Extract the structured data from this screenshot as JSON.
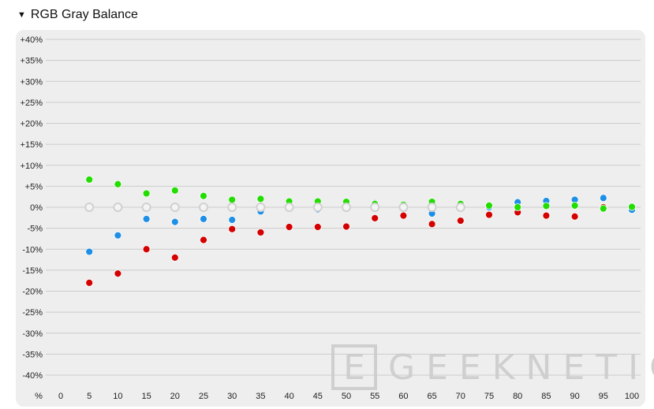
{
  "header": {
    "toggle_icon": "triangle-down-icon",
    "title": "RGB Gray Balance"
  },
  "watermark": {
    "text": "GEEKNETIC",
    "logo_letter": "E"
  },
  "chart_data": {
    "type": "scatter",
    "title": "RGB Gray Balance",
    "xlabel": "%",
    "ylabel": "",
    "x": [
      0,
      5,
      10,
      15,
      20,
      25,
      30,
      35,
      40,
      45,
      50,
      55,
      60,
      65,
      70,
      75,
      80,
      85,
      90,
      95,
      100
    ],
    "x_ticks": [
      "0",
      "5",
      "10",
      "15",
      "20",
      "25",
      "30",
      "35",
      "40",
      "45",
      "50",
      "55",
      "60",
      "65",
      "70",
      "75",
      "80",
      "85",
      "90",
      "95",
      "100"
    ],
    "ylim": [
      -40,
      40
    ],
    "y_ticks": [
      40,
      35,
      30,
      25,
      20,
      15,
      10,
      5,
      0,
      -5,
      -10,
      -15,
      -20,
      -25,
      -30,
      -35,
      -40
    ],
    "y_tick_labels": [
      "+40%",
      "+35%",
      "+30%",
      "+25%",
      "+20%",
      "+15%",
      "+10%",
      "+5%",
      "0%",
      "-5%",
      "-10%",
      "-15%",
      "-20%",
      "-25%",
      "-30%",
      "-35%",
      "-40%"
    ],
    "grid": true,
    "series": [
      {
        "color": "#d40000",
        "points": [
          [
            5,
            -18
          ],
          [
            10,
            -15.8
          ],
          [
            15,
            -10
          ],
          [
            20,
            -12
          ],
          [
            25,
            -7.8
          ],
          [
            30,
            -5.2
          ],
          [
            35,
            -6
          ],
          [
            40,
            -4.7
          ],
          [
            45,
            -4.7
          ],
          [
            50,
            -4.6
          ],
          [
            55,
            -2.6
          ],
          [
            60,
            -2
          ],
          [
            65,
            -4
          ],
          [
            70,
            -3.2
          ],
          [
            75,
            -1.8
          ],
          [
            80,
            -1.2
          ],
          [
            85,
            -2
          ],
          [
            90,
            -2.2
          ],
          [
            95,
            0
          ],
          [
            100,
            0
          ]
        ]
      },
      {
        "color": "#1e8fe6",
        "points": [
          [
            5,
            -10.6
          ],
          [
            10,
            -6.7
          ],
          [
            15,
            -2.8
          ],
          [
            20,
            -3.5
          ],
          [
            25,
            -2.8
          ],
          [
            30,
            -3
          ],
          [
            35,
            -1
          ],
          [
            40,
            0.8
          ],
          [
            45,
            -0.5
          ],
          [
            50,
            0.8
          ],
          [
            55,
            1
          ],
          [
            60,
            -0.3
          ],
          [
            65,
            -1.5
          ],
          [
            70,
            0.8
          ],
          [
            75,
            0
          ],
          [
            80,
            1.2
          ],
          [
            85,
            1.5
          ],
          [
            90,
            1.8
          ],
          [
            95,
            2.2
          ],
          [
            100,
            -0.6
          ]
        ]
      },
      {
        "color": "#22dd00",
        "points": [
          [
            5,
            6.6
          ],
          [
            10,
            5.5
          ],
          [
            15,
            3.3
          ],
          [
            20,
            4
          ],
          [
            25,
            2.7
          ],
          [
            30,
            1.8
          ],
          [
            35,
            2
          ],
          [
            40,
            1.4
          ],
          [
            45,
            1.4
          ],
          [
            50,
            1.3
          ],
          [
            55,
            0.8
          ],
          [
            60,
            0.6
          ],
          [
            65,
            1.3
          ],
          [
            70,
            0.8
          ],
          [
            75,
            0.4
          ],
          [
            80,
            0
          ],
          [
            85,
            0.3
          ],
          [
            90,
            0.4
          ],
          [
            95,
            -0.3
          ],
          [
            100,
            0.1
          ]
        ]
      },
      {
        "color": "#d0d0d0",
        "hollow": true,
        "points": [
          [
            5,
            0
          ],
          [
            10,
            0
          ],
          [
            15,
            0
          ],
          [
            20,
            0
          ],
          [
            25,
            0
          ],
          [
            30,
            0
          ],
          [
            35,
            0
          ],
          [
            40,
            0
          ],
          [
            45,
            0
          ],
          [
            50,
            0
          ],
          [
            55,
            0
          ],
          [
            60,
            0
          ],
          [
            65,
            0
          ],
          [
            70,
            0
          ]
        ]
      }
    ]
  }
}
